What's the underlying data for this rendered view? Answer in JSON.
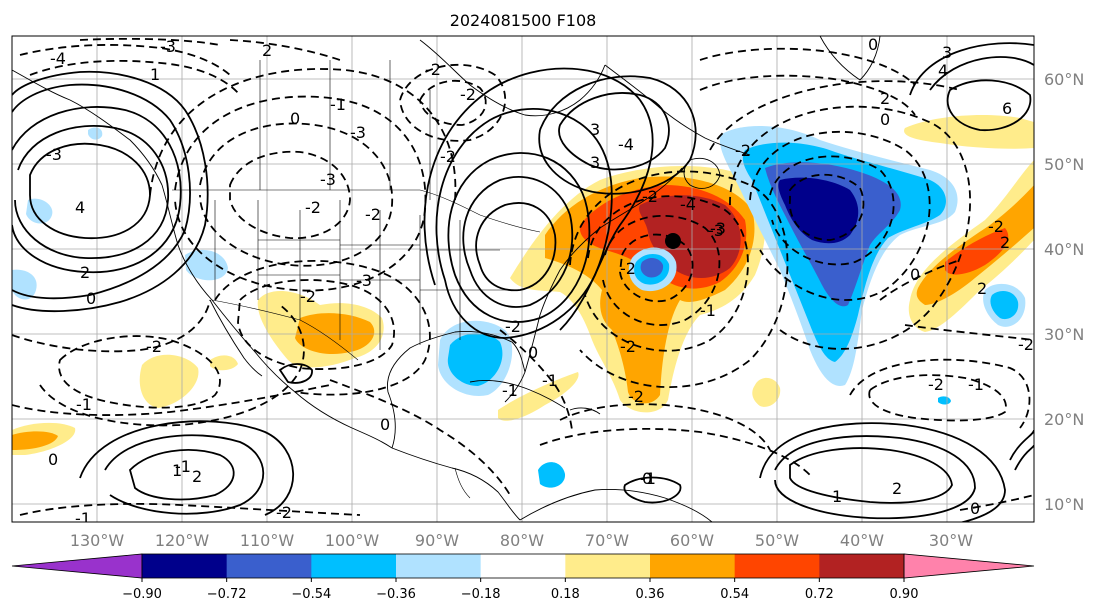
{
  "title": "2024081500 F108",
  "lon_labels": [
    "130°W",
    "120°W",
    "110°W",
    "100°W",
    "90°W",
    "80°W",
    "70°W",
    "60°W",
    "50°W",
    "40°W",
    "30°W"
  ],
  "lat_labels": [
    "60°N",
    "50°N",
    "40°N",
    "30°N",
    "20°N",
    "10°N"
  ],
  "colorbar": {
    "ticks": [
      "−0.90",
      "−0.72",
      "−0.54",
      "−0.36",
      "−0.18",
      "0.18",
      "0.36",
      "0.54",
      "0.72",
      "0.90"
    ],
    "colors": [
      "#9932cc",
      "#00008b",
      "#3a5fcd",
      "#00bfff",
      "#b0e2ff",
      "#ffffff",
      "#ffec8b",
      "#ffa500",
      "#ff4500",
      "#b22222",
      "#ff82ab"
    ]
  },
  "contour_labels": [
    "-3",
    "2",
    "1",
    "-4",
    "-2",
    "0",
    "-1",
    "-3",
    "-3",
    "-2",
    "-2",
    "-2",
    "-2",
    "-3",
    "4",
    "3",
    "-2",
    "-4",
    "-3",
    "-2",
    "2",
    "0",
    "-3",
    "-2",
    "-2",
    "-2",
    "-1",
    "-2",
    "0",
    "-1",
    "1",
    "2",
    "0",
    "-1",
    "-2",
    "-1",
    "0",
    "-1",
    "0",
    "1",
    "2",
    "-1",
    "-2",
    "2",
    "-2",
    "0",
    "3",
    "-4",
    "2",
    "4",
    "3",
    "6",
    "0",
    "2",
    "-2",
    "-1",
    "-1",
    "-2",
    "0",
    "-3",
    "-2",
    "0"
  ],
  "marker": "storm-center-dot"
}
